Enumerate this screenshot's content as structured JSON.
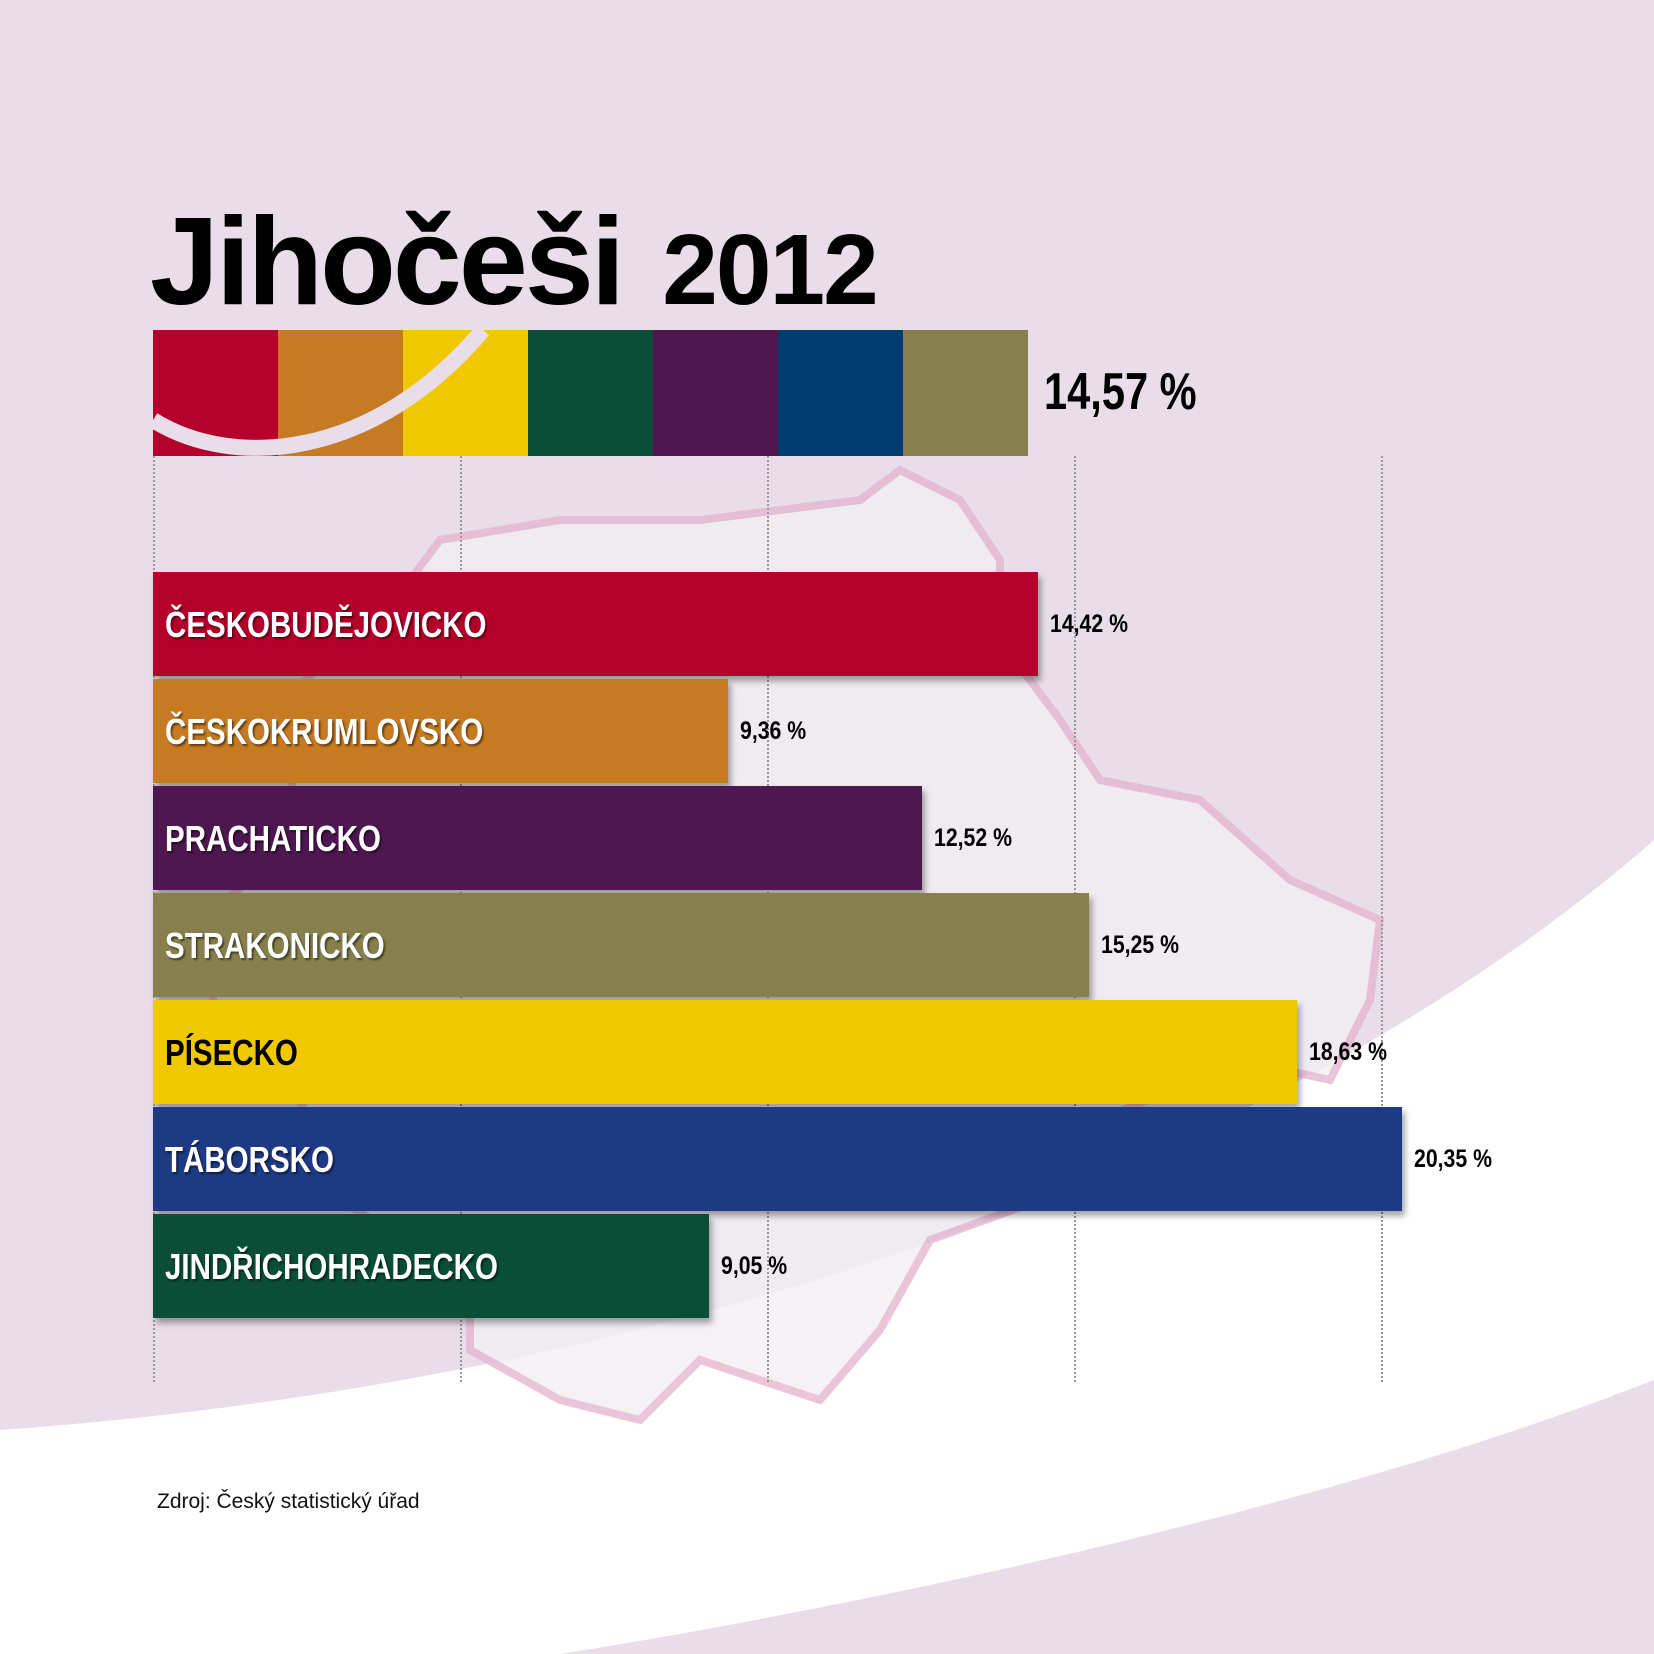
{
  "chart_data": {
    "type": "bar",
    "orientation": "horizontal",
    "title": "Jihočeši",
    "title_year": "2012",
    "total_value_label": "14,57 %",
    "categories": [
      "ČESKOBUDĚJOVICKO",
      "ČESKOKRUMLOVSKO",
      "PRACHATICKO",
      "STRAKONICKO",
      "PÍSECKO",
      "TÁBORSKO",
      "JINDŘICHOHRADECKO"
    ],
    "values": [
      14.42,
      9.36,
      12.52,
      15.25,
      18.63,
      20.35,
      9.05
    ],
    "value_labels": [
      "14,42 %",
      "9,36 %",
      "12,52 %",
      "15,25 %",
      "18,63 %",
      "20,35 %",
      "9,05 %"
    ],
    "colors": [
      "#b5002b",
      "#c67a22",
      "#4e1750",
      "#87804d",
      "#f0c800",
      "#1f3a84",
      "#0b4e38"
    ],
    "label_colors": [
      "#ffffff",
      "#ffffff",
      "#ffffff",
      "#ffffff",
      "#000000",
      "#ffffff",
      "#ffffff"
    ],
    "xlim": [
      0,
      20
    ],
    "grid_values": [
      0,
      5,
      10,
      15,
      20
    ],
    "grid": true,
    "stripe_colors": [
      "#b5002b",
      "#c67a22",
      "#f0c800",
      "#0b4e38",
      "#4e1750",
      "#003d6e",
      "#87804d"
    ],
    "source": "Zdroj: Český statistický úřad"
  }
}
